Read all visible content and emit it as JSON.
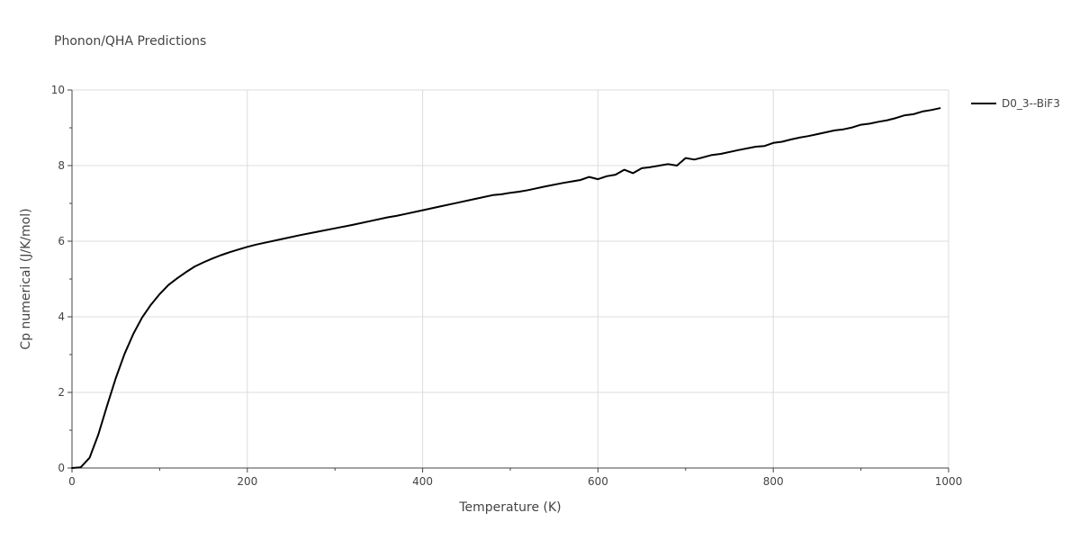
{
  "chart_data": {
    "type": "line",
    "title": "Phonon/QHA Predictions",
    "xlabel": "Temperature (K)",
    "ylabel": "Cp numerical (J/K/mol)",
    "xlim": [
      0,
      1000
    ],
    "ylim": [
      0,
      10
    ],
    "xticks": [
      0,
      200,
      400,
      600,
      800,
      1000
    ],
    "yticks": [
      0,
      2,
      4,
      6,
      8,
      10
    ],
    "grid": true,
    "legend_position": "top-right",
    "series": [
      {
        "name": "D0_3--BiF3",
        "color": "#000000",
        "x": [
          0,
          10,
          20,
          30,
          40,
          50,
          60,
          70,
          80,
          90,
          100,
          110,
          120,
          130,
          140,
          150,
          160,
          170,
          180,
          190,
          200,
          210,
          220,
          240,
          260,
          280,
          300,
          320,
          340,
          360,
          370,
          380,
          400,
          420,
          440,
          460,
          480,
          490,
          500,
          510,
          520,
          540,
          560,
          580,
          590,
          600,
          610,
          620,
          630,
          640,
          650,
          660,
          670,
          680,
          690,
          700,
          710,
          720,
          730,
          740,
          760,
          780,
          790,
          800,
          810,
          820,
          830,
          840,
          850,
          860,
          870,
          880,
          890,
          900,
          910,
          920,
          930,
          940,
          950,
          960,
          970,
          980,
          990
        ],
        "y": [
          0.0,
          0.02,
          0.27,
          0.88,
          1.65,
          2.38,
          3.02,
          3.55,
          3.98,
          4.32,
          4.6,
          4.84,
          5.02,
          5.18,
          5.33,
          5.44,
          5.54,
          5.63,
          5.71,
          5.78,
          5.85,
          5.91,
          5.96,
          6.06,
          6.16,
          6.25,
          6.34,
          6.43,
          6.53,
          6.63,
          6.67,
          6.72,
          6.82,
          6.92,
          7.02,
          7.12,
          7.22,
          7.24,
          7.28,
          7.31,
          7.35,
          7.45,
          7.54,
          7.62,
          7.7,
          7.64,
          7.72,
          7.76,
          7.89,
          7.8,
          7.93,
          7.96,
          8.0,
          8.04,
          8.0,
          8.2,
          8.16,
          8.22,
          8.28,
          8.31,
          8.41,
          8.5,
          8.52,
          8.6,
          8.63,
          8.69,
          8.74,
          8.78,
          8.83,
          8.88,
          8.93,
          8.96,
          9.01,
          9.08,
          9.11,
          9.16,
          9.2,
          9.26,
          9.33,
          9.36,
          9.43,
          9.47,
          9.52
        ]
      }
    ]
  }
}
